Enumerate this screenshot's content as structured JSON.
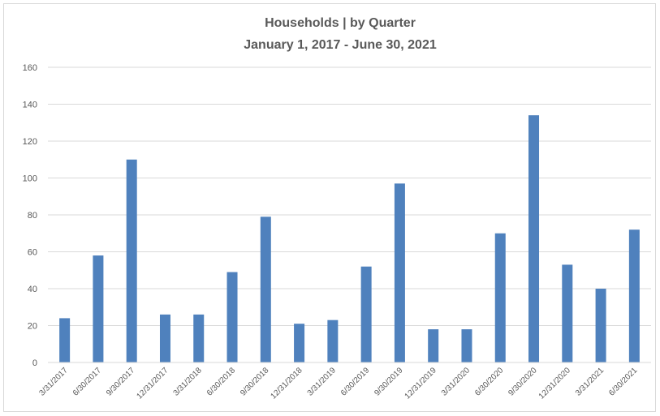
{
  "chart_data": {
    "type": "bar",
    "title": "Households | by Quarter",
    "subtitle": "January 1, 2017 - June 30, 2021",
    "xlabel": "",
    "ylabel": "",
    "ylim": [
      0,
      160
    ],
    "yticks": [
      "0",
      "20",
      "40",
      "60",
      "80",
      "100",
      "120",
      "140",
      "160"
    ],
    "grid": true,
    "categories": [
      "3/31/2017",
      "6/30/2017",
      "9/30/2017",
      "12/31/2017",
      "3/31/2018",
      "6/30/2018",
      "9/30/2018",
      "12/31/2018",
      "3/31/2019",
      "6/30/2019",
      "9/30/2019",
      "12/31/2019",
      "3/31/2020",
      "6/30/2020",
      "9/30/2020",
      "12/31/2020",
      "3/31/2021",
      "6/30/2021"
    ],
    "values": [
      24,
      58,
      110,
      26,
      26,
      49,
      79,
      21,
      23,
      52,
      97,
      18,
      18,
      70,
      134,
      53,
      40,
      72
    ],
    "bar_color": "#4f81bd",
    "grid_color": "#d9d9d9"
  }
}
